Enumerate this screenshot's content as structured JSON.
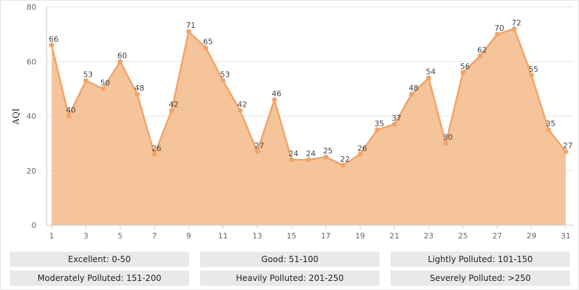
{
  "chart_data": {
    "type": "area",
    "x": [
      1,
      2,
      3,
      4,
      5,
      6,
      7,
      8,
      9,
      10,
      11,
      12,
      13,
      14,
      15,
      16,
      17,
      18,
      19,
      20,
      21,
      22,
      23,
      24,
      25,
      26,
      27,
      28,
      29,
      30,
      31
    ],
    "values": [
      66,
      40,
      53,
      50,
      60,
      48,
      26,
      42,
      71,
      65,
      53,
      42,
      27,
      46,
      24,
      24,
      25,
      22,
      26,
      35,
      37,
      48,
      54,
      30,
      56,
      62,
      70,
      72,
      55,
      35,
      27
    ],
    "x_tick_labels": [
      "1",
      "3",
      "5",
      "7",
      "9",
      "11",
      "13",
      "15",
      "17",
      "19",
      "21",
      "23",
      "25",
      "27",
      "29",
      "31"
    ],
    "y_tick_labels": [
      "0",
      "20",
      "40",
      "60",
      "80"
    ],
    "ylabel": "AQI",
    "ylim": [
      0,
      80
    ],
    "grid": "horizontal",
    "colors": {
      "fill": "#f5c49b",
      "line": "#f2a366",
      "marker": "#f2a366"
    }
  },
  "legend": [
    {
      "label": "Excellent: 0-50"
    },
    {
      "label": "Good: 51-100"
    },
    {
      "label": "Lightly Polluted: 101-150"
    },
    {
      "label": "Moderately Polluted: 151-200"
    },
    {
      "label": "Heavily Polluted: 201-250"
    },
    {
      "label": "Severely Polluted: >250"
    }
  ]
}
